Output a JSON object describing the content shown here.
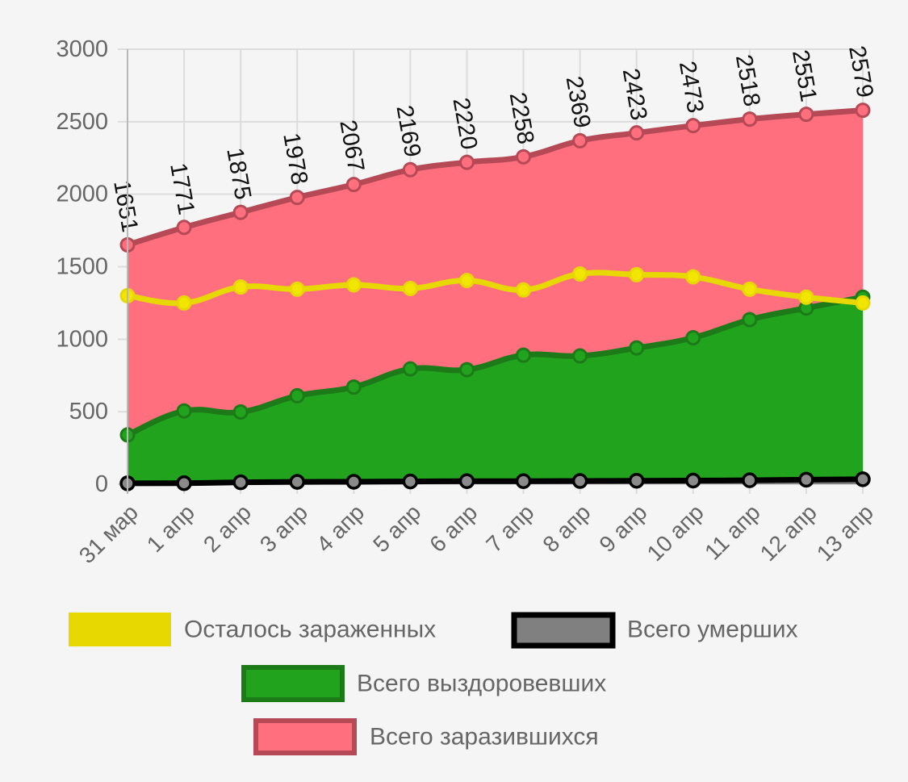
{
  "chart_data": {
    "type": "area",
    "title": "",
    "xlabel": "",
    "ylabel": "",
    "ylim": [
      0,
      3000
    ],
    "yticks": [
      0,
      500,
      1000,
      1500,
      2000,
      2500,
      3000
    ],
    "grid": true,
    "legend_position": "bottom",
    "categories": [
      "31 мар",
      "1 апр",
      "2 апр",
      "3 апр",
      "4 апр",
      "5 апр",
      "6 апр",
      "7 апр",
      "8 апр",
      "9 апр",
      "10 апр",
      "11 апр",
      "12 апр",
      "13 апр"
    ],
    "series": [
      {
        "name": "Всего заразившихся",
        "key": "total_infected",
        "fill": "#ff6f7e",
        "stroke": "#b54a56",
        "values": [
          1651,
          1771,
          1875,
          1978,
          2067,
          2169,
          2220,
          2258,
          2369,
          2423,
          2473,
          2518,
          2551,
          2579
        ],
        "labeled": true
      },
      {
        "name": "Всего выздоровевших",
        "key": "total_recovered",
        "fill": "#22a31e",
        "stroke": "#1d7a18",
        "values": [
          340,
          505,
          498,
          610,
          670,
          795,
          790,
          890,
          885,
          940,
          1010,
          1135,
          1215,
          1290
        ],
        "labeled": false
      },
      {
        "name": "Осталось зараженных",
        "key": "remaining_infected",
        "fill": "none",
        "stroke": "#e6d800",
        "values": [
          1300,
          1250,
          1360,
          1345,
          1375,
          1350,
          1405,
          1340,
          1450,
          1445,
          1430,
          1345,
          1290,
          1250
        ],
        "labeled": false
      },
      {
        "name": "Всего умерших",
        "key": "total_deaths",
        "fill": "#808080",
        "stroke": "#000000",
        "values": [
          6,
          7,
          13,
          16,
          17,
          19,
          21,
          21,
          22,
          24,
          25,
          27,
          31,
          34
        ],
        "labeled": false
      }
    ],
    "legend": {
      "row1": [
        "Осталось зараженных",
        "Всего умерших"
      ],
      "row2": [
        "Всего выздоровевших"
      ],
      "row3": [
        "Всего заразившихся"
      ]
    }
  }
}
